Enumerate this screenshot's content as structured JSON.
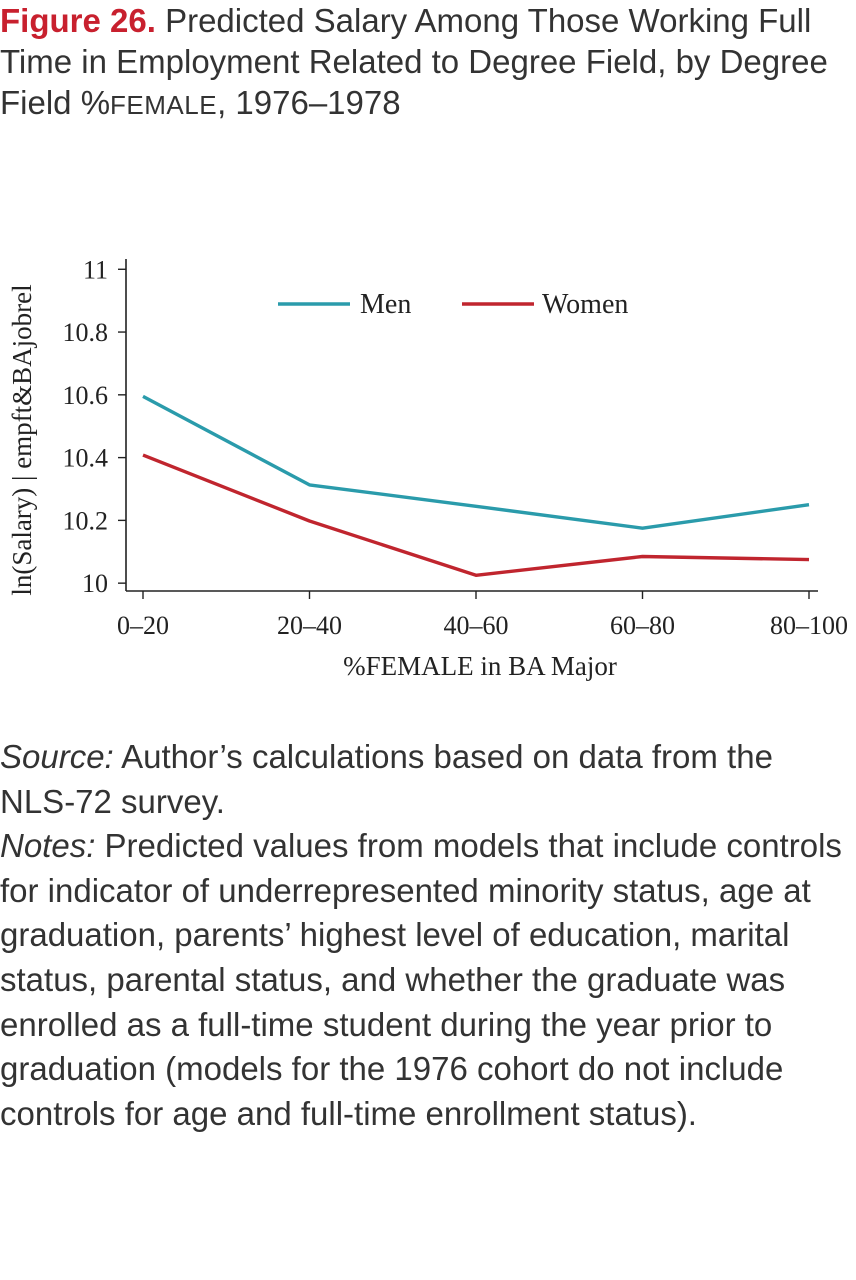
{
  "figure": {
    "label": "Figure 26.",
    "title_part1": "Predicted Salary Among Those Working Full Time in Employment Related to Degree Field, by Degree Field %",
    "title_smallcaps": "FEMALE",
    "title_part2": ", 1976–1978"
  },
  "chart_data": {
    "type": "line",
    "categories": [
      "0–20",
      "20–40",
      "40–60",
      "60–80",
      "80–100"
    ],
    "series": [
      {
        "name": "Men",
        "color": "#2a9bab",
        "values": [
          10.595,
          10.313,
          10.245,
          10.175,
          10.25
        ]
      },
      {
        "name": "Women",
        "color": "#c0252e",
        "values": [
          10.408,
          10.198,
          10.025,
          10.085,
          10.075
        ]
      }
    ],
    "yticks": [
      "10",
      "10.2",
      "10.4",
      "10.6",
      "10.8",
      "11"
    ],
    "ylim": [
      9.975,
      11.02
    ],
    "xlabel": "%FEMALE in BA Major",
    "ylabel": "ln(Salary) | empft&BAjobrel",
    "legend_position": "top-center",
    "grid": false
  },
  "source": {
    "label": "Source:",
    "text": " Author’s calculations based on data from the NLS-72 survey."
  },
  "notes": {
    "label": "Notes:",
    "text": " Predicted values from models that include controls for indicator of underrepresented minority status, age at graduation, parents’ highest level of education, marital status, parental status, and whether the graduate was enrolled as a full-time student during the year prior to graduation (models for the 1976 cohort do not include controls for age and full-time enrollment status)."
  }
}
